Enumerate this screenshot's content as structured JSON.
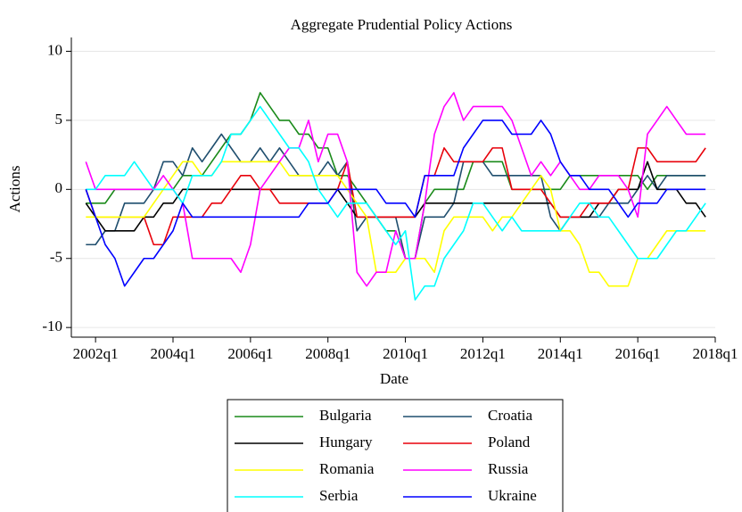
{
  "chart_data": {
    "type": "line",
    "title": "Aggregate Prudential Policy Actions",
    "x_label": "Date",
    "y_label": "Actions",
    "x": [
      167,
      168,
      169,
      170,
      171,
      172,
      173,
      174,
      175,
      176,
      177,
      178,
      179,
      180,
      181,
      182,
      183,
      184,
      185,
      186,
      187,
      188,
      189,
      190,
      191,
      192,
      193,
      194,
      195,
      196,
      197,
      198,
      199,
      200,
      201,
      202,
      203,
      204,
      205,
      206,
      207,
      208,
      209,
      210,
      211,
      212,
      213,
      214,
      215,
      216,
      217,
      218,
      219,
      220,
      221,
      222,
      223,
      224,
      225,
      226,
      227,
      228,
      229,
      230,
      231
    ],
    "xlim": [
      165.5,
      232
    ],
    "xticks": [
      {
        "value": 168,
        "label": "2002q1"
      },
      {
        "value": 176,
        "label": "2004q1"
      },
      {
        "value": 184,
        "label": "2006q1"
      },
      {
        "value": 192,
        "label": "2008q1"
      },
      {
        "value": 200,
        "label": "2010q1"
      },
      {
        "value": 208,
        "label": "2012q1"
      },
      {
        "value": 216,
        "label": "2014q1"
      },
      {
        "value": 224,
        "label": "2016q1"
      },
      {
        "value": 232,
        "label": "2018q1"
      }
    ],
    "ylim": [
      -10.7,
      11
    ],
    "yticks": [
      10,
      5,
      0,
      -5,
      -10
    ],
    "grid": true,
    "legend": "bottom",
    "series": [
      {
        "name": "Bulgaria",
        "color": "#1a8a1a",
        "values": [
          -1,
          -1,
          -1,
          0,
          0,
          0,
          0,
          0,
          0,
          0,
          1,
          1,
          1,
          2,
          3,
          4,
          4,
          5,
          7,
          6,
          5,
          5,
          4,
          4,
          3,
          3,
          1,
          1,
          0,
          -1,
          -2,
          -3,
          -3,
          -5,
          -5,
          -1,
          0,
          0,
          0,
          0,
          2,
          2,
          2,
          2,
          0,
          0,
          0,
          0,
          0,
          0,
          1,
          1,
          1,
          1,
          1,
          1,
          1,
          1,
          0,
          1,
          1,
          1,
          1,
          1,
          1
        ]
      },
      {
        "name": "Croatia",
        "color": "#1f4e6e",
        "values": [
          -4,
          -4,
          -3,
          -3,
          -1,
          -1,
          -1,
          0,
          2,
          2,
          1,
          3,
          2,
          3,
          4,
          3,
          2,
          2,
          3,
          2,
          3,
          2,
          1,
          1,
          1,
          2,
          1,
          2,
          -3,
          -2,
          -2,
          -2,
          -2,
          -5,
          -5,
          -2,
          -2,
          -2,
          -1,
          2,
          2,
          2,
          1,
          1,
          1,
          1,
          1,
          1,
          -2,
          -3,
          -2,
          -2,
          -2,
          -2,
          -1,
          -1,
          -1,
          0,
          1,
          0,
          1,
          1,
          1,
          1,
          1
        ]
      },
      {
        "name": "Hungary",
        "color": "#000000",
        "values": [
          -1,
          -2,
          -3,
          -3,
          -3,
          -3,
          -2,
          -2,
          -1,
          -1,
          0,
          0,
          0,
          0,
          0,
          0,
          0,
          0,
          0,
          0,
          0,
          0,
          0,
          0,
          0,
          0,
          0,
          -1,
          -2,
          -2,
          -2,
          -2,
          -2,
          -2,
          -2,
          -1,
          -1,
          -1,
          -1,
          -1,
          -1,
          -1,
          -1,
          -1,
          -1,
          -1,
          -1,
          -1,
          -1,
          -2,
          -2,
          -2,
          -2,
          -1,
          -1,
          0,
          0,
          0,
          2,
          0,
          0,
          0,
          -1,
          -1,
          -2
        ]
      },
      {
        "name": "Poland",
        "color": "#e8000b",
        "values": [
          0,
          -2,
          -2,
          -2,
          -2,
          -2,
          -2,
          -4,
          -4,
          -2,
          -2,
          -2,
          -2,
          -1,
          -1,
          0,
          1,
          1,
          0,
          0,
          -1,
          -1,
          -1,
          -1,
          -1,
          -1,
          0,
          2,
          -2,
          -2,
          -2,
          -2,
          -2,
          -2,
          -2,
          1,
          1,
          3,
          2,
          2,
          2,
          2,
          3,
          3,
          0,
          0,
          0,
          0,
          -1,
          -2,
          -2,
          -2,
          -1,
          -1,
          -1,
          0,
          0,
          3,
          3,
          2,
          2,
          2,
          2,
          2,
          3
        ]
      },
      {
        "name": "Romania",
        "color": "#ffff00",
        "values": [
          -2,
          -2,
          -2,
          -2,
          -2,
          -2,
          -2,
          -1,
          0,
          1,
          2,
          2,
          1,
          1,
          2,
          2,
          2,
          2,
          2,
          2,
          2,
          1,
          1,
          1,
          1,
          1,
          1,
          0,
          -1,
          -2,
          -6,
          -6,
          -6,
          -5,
          -5,
          -5,
          -6,
          -3,
          -2,
          -2,
          -2,
          -2,
          -3,
          -2,
          -2,
          -1,
          0,
          1,
          0,
          -3,
          -3,
          -4,
          -6,
          -6,
          -7,
          -7,
          -7,
          -5,
          -5,
          -4,
          -3,
          -3,
          -3,
          -3,
          -3
        ]
      },
      {
        "name": "Russia",
        "color": "#ff00ff",
        "values": [
          2,
          0,
          0,
          0,
          0,
          0,
          0,
          0,
          1,
          0,
          -1,
          -5,
          -5,
          -5,
          -5,
          -5,
          -6,
          -4,
          0,
          1,
          2,
          3,
          3,
          5,
          2,
          4,
          4,
          2,
          -6,
          -7,
          -6,
          -6,
          -3,
          -5,
          -5,
          -1,
          4,
          6,
          7,
          5,
          6,
          6,
          6,
          6,
          5,
          3,
          1,
          2,
          1,
          2,
          1,
          0,
          0,
          1,
          1,
          1,
          0,
          -2,
          4,
          5,
          6,
          5,
          4,
          4,
          4
        ]
      },
      {
        "name": "Serbia",
        "color": "#00ffff",
        "values": [
          0,
          0,
          1,
          1,
          1,
          2,
          1,
          0,
          0,
          0,
          -1,
          1,
          1,
          1,
          2,
          4,
          4,
          5,
          6,
          5,
          4,
          3,
          3,
          2,
          0,
          -1,
          -2,
          -1,
          -1,
          -1,
          -2,
          -3,
          -4,
          -3,
          -8,
          -7,
          -7,
          -5,
          -4,
          -3,
          -1,
          -1,
          -2,
          -3,
          -2,
          -3,
          -3,
          -3,
          -3,
          -3,
          -2,
          -1,
          -1,
          -2,
          -2,
          -3,
          -4,
          -5,
          -5,
          -5,
          -4,
          -3,
          -3,
          -2,
          -1
        ]
      },
      {
        "name": "Ukraine",
        "color": "#0000ff",
        "values": [
          0,
          -2,
          -4,
          -5,
          -7,
          -6,
          -5,
          -5,
          -4,
          -3,
          -1,
          -2,
          -2,
          -2,
          -2,
          -2,
          -2,
          -2,
          -2,
          -2,
          -2,
          -2,
          -2,
          -1,
          -1,
          -1,
          0,
          0,
          0,
          0,
          0,
          -1,
          -1,
          -1,
          -2,
          1,
          1,
          1,
          1,
          3,
          4,
          5,
          5,
          5,
          4,
          4,
          4,
          5,
          4,
          2,
          1,
          1,
          0,
          0,
          0,
          -1,
          -2,
          -1,
          -1,
          -1,
          0,
          0,
          0,
          0,
          0
        ]
      }
    ]
  }
}
